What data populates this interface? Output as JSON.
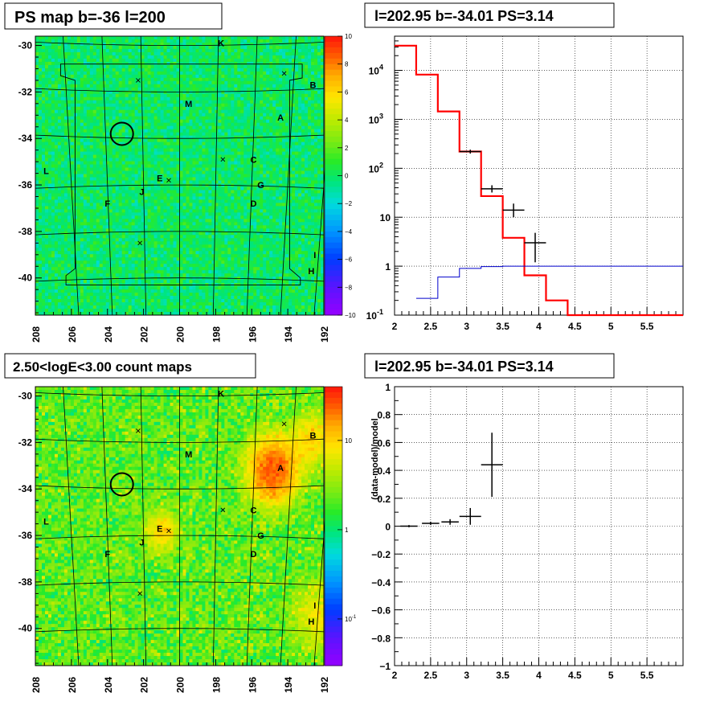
{
  "titles": {
    "tl": "PS map b=-36 l=200",
    "tr": "l=202.95 b=-34.01 PS=3.14",
    "bl": "2.50<logE<3.00 count maps",
    "br": "l=202.95 b=-34.01 PS=3.14"
  },
  "chart_data": [
    {
      "type": "heatmap",
      "title": "PS map b=-36 l=200",
      "x_ticks": [
        "208",
        "206",
        "204",
        "202",
        "200",
        "198",
        "196",
        "194",
        "192"
      ],
      "y_ticks": [
        "-30",
        "-32",
        "-34",
        "-36",
        "-38",
        "-40"
      ],
      "xlim": [
        208,
        192
      ],
      "ylim": [
        -41.6,
        -29.6
      ],
      "z_ticks": [
        "10",
        "8",
        "6",
        "4",
        "2",
        "0",
        "−2",
        "−4",
        "−6",
        "−8",
        "−10"
      ],
      "zlim": [
        -10,
        10
      ],
      "sources": [
        {
          "label": "K",
          "l": 197.7,
          "b": -29.9
        },
        {
          "label": "B",
          "l": 192.6,
          "b": -31.7
        },
        {
          "label": "M",
          "l": 199.5,
          "b": -32.5
        },
        {
          "label": "A",
          "l": 194.4,
          "b": -33.1
        },
        {
          "label": "C",
          "l": 195.9,
          "b": -34.9
        },
        {
          "label": "L",
          "l": 207.4,
          "b": -35.4
        },
        {
          "label": "E",
          "l": 201.1,
          "b": -35.7
        },
        {
          "label": "G",
          "l": 195.5,
          "b": -36.0
        },
        {
          "label": "J",
          "l": 202.1,
          "b": -36.3
        },
        {
          "label": "F",
          "l": 204.0,
          "b": -36.8
        },
        {
          "label": "D",
          "l": 195.9,
          "b": -36.8
        },
        {
          "label": "I",
          "l": 192.5,
          "b": -39.0
        },
        {
          "label": "H",
          "l": 192.7,
          "b": -39.7
        }
      ],
      "crosses": [
        {
          "l": 202.3,
          "b": -31.5
        },
        {
          "l": 194.2,
          "b": -31.2
        },
        {
          "l": 197.6,
          "b": -34.9
        },
        {
          "l": 200.6,
          "b": -35.8
        },
        {
          "l": 202.2,
          "b": -38.5
        }
      ],
      "circle": {
        "l": 203.2,
        "b": -33.8
      }
    },
    {
      "type": "line",
      "title": "l=202.95 b=-34.01 PS=3.14",
      "xlim": [
        2,
        6
      ],
      "ylim": [
        0.1,
        50000
      ],
      "log_y": true,
      "x_ticks": [
        "2",
        "2.5",
        "3",
        "3.5",
        "4",
        "4.5",
        "5",
        "5.5"
      ],
      "y_ticks": [
        "10^-1",
        "1",
        "10",
        "10^2",
        "10^3",
        "10^4"
      ],
      "grid": true,
      "series": [
        {
          "color": "#ff0000",
          "step_edges": [
            2,
            2.3,
            2.6,
            2.9,
            3.2,
            3.5,
            3.8,
            4.1,
            4.4,
            6
          ],
          "values": [
            32000,
            8200,
            1450,
            220,
            27,
            3.8,
            0.65,
            0.2,
            0.1
          ]
        },
        {
          "color": "#0000cc",
          "step_edges": [
            2.3,
            2.6,
            2.9,
            3.2,
            3.5,
            6
          ],
          "values": [
            0.22,
            0.6,
            0.9,
            0.98,
            1.0
          ]
        },
        {
          "color": "#000000",
          "type": "errorbar",
          "points": [
            {
              "x": 3.05,
              "y": 220,
              "xe": 0.15,
              "ylo": 200,
              "yhi": 240
            },
            {
              "x": 3.35,
              "y": 38,
              "xe": 0.15,
              "ylo": 32,
              "yhi": 45
            },
            {
              "x": 3.65,
              "y": 14,
              "xe": 0.15,
              "ylo": 10,
              "yhi": 19
            },
            {
              "x": 3.95,
              "y": 3.0,
              "xe": 0.15,
              "ylo": 1.2,
              "yhi": 4.8
            }
          ]
        }
      ]
    },
    {
      "type": "heatmap",
      "title": "2.50<logE<3.00 count maps",
      "x_ticks": [
        "208",
        "206",
        "204",
        "202",
        "200",
        "198",
        "196",
        "194",
        "192"
      ],
      "y_ticks": [
        "-30",
        "-32",
        "-34",
        "-36",
        "-38",
        "-40"
      ],
      "xlim": [
        208,
        192
      ],
      "ylim": [
        -41.6,
        -29.6
      ],
      "z_ticks": [
        "10",
        "1",
        "10^-1"
      ],
      "log_z": true,
      "zlim": [
        0.03,
        40
      ],
      "hotspots": [
        {
          "label": "A",
          "l": 194.8,
          "b": -33.2,
          "amp": 25,
          "sigma": 0.8
        },
        {
          "label": "E",
          "l": 201.0,
          "b": -35.8,
          "amp": 8,
          "sigma": 0.55
        },
        {
          "label": "B",
          "l": 192.7,
          "b": -31.9,
          "amp": 8,
          "sigma": 0.7
        },
        {
          "label": "I",
          "l": 192.3,
          "b": -39.5,
          "amp": 5,
          "sigma": 0.9
        }
      ]
    },
    {
      "type": "scatter",
      "title": "l=202.95 b=-34.01 PS=3.14",
      "ylabel": "(data-model)/model",
      "xlim": [
        2,
        6
      ],
      "ylim": [
        -1,
        1
      ],
      "x_ticks": [
        "2",
        "2.5",
        "3",
        "3.5",
        "4",
        "4.5",
        "5",
        "5.5"
      ],
      "y_ticks": [
        "−1",
        "−0.8",
        "−0.6",
        "−0.4",
        "−0.2",
        "0",
        "0.2",
        "0.4",
        "0.6",
        "0.8",
        "1"
      ],
      "grid": true,
      "points": [
        {
          "x": 2.2,
          "y": 0.0,
          "xe": 0.12,
          "ye": 0.008
        },
        {
          "x": 2.5,
          "y": 0.02,
          "xe": 0.12,
          "ye": 0.012
        },
        {
          "x": 2.77,
          "y": 0.03,
          "xe": 0.12,
          "ye": 0.02
        },
        {
          "x": 3.05,
          "y": 0.07,
          "xe": 0.15,
          "ye": 0.06
        },
        {
          "x": 3.35,
          "y": 0.44,
          "xe": 0.15,
          "ye": 0.23
        }
      ]
    }
  ]
}
